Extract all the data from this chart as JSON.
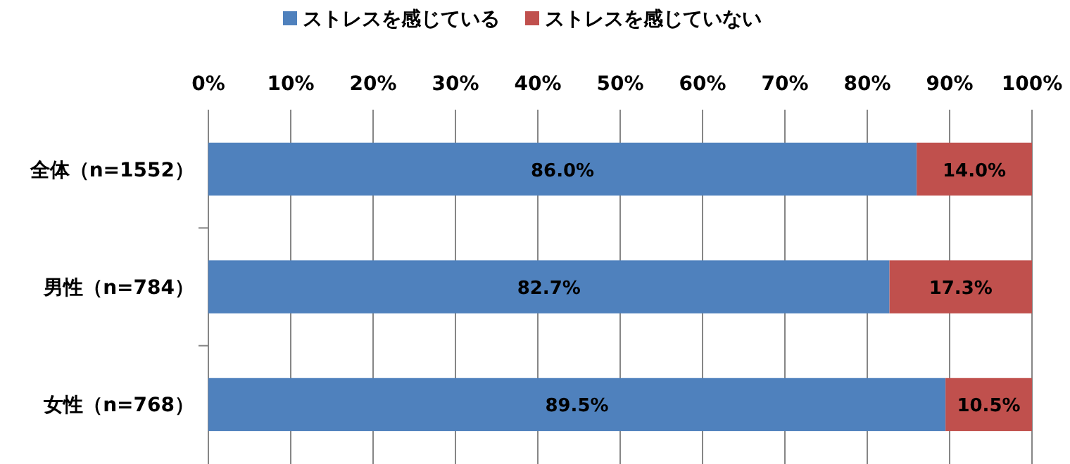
{
  "chart_data": {
    "type": "bar",
    "orientation": "horizontal",
    "stacked": true,
    "categories": [
      "全体（n=1552）",
      "男性（n=784）",
      "女性（n=768）"
    ],
    "series": [
      {
        "name": "ストレスを感じている",
        "color": "#4f81bd",
        "values": [
          86.0,
          82.7,
          89.5
        ],
        "value_labels": [
          "86.0%",
          "82.7%",
          "89.5%"
        ]
      },
      {
        "name": "ストレスを感じていない",
        "color": "#c0504d",
        "values": [
          14.0,
          17.3,
          10.5
        ],
        "value_labels": [
          "14.0%",
          "17.3%",
          "10.5%"
        ]
      }
    ],
    "xlim": [
      0,
      100
    ],
    "xticks": [
      {
        "value": 0,
        "label": "0%"
      },
      {
        "value": 10,
        "label": "10%"
      },
      {
        "value": 20,
        "label": "20%"
      },
      {
        "value": 30,
        "label": "30%"
      },
      {
        "value": 40,
        "label": "40%"
      },
      {
        "value": 50,
        "label": "50%"
      },
      {
        "value": 60,
        "label": "60%"
      },
      {
        "value": 70,
        "label": "70%"
      },
      {
        "value": 80,
        "label": "80%"
      },
      {
        "value": 90,
        "label": "90%"
      },
      {
        "value": 100,
        "label": "100%"
      }
    ],
    "grid": "x",
    "legend": "top"
  }
}
